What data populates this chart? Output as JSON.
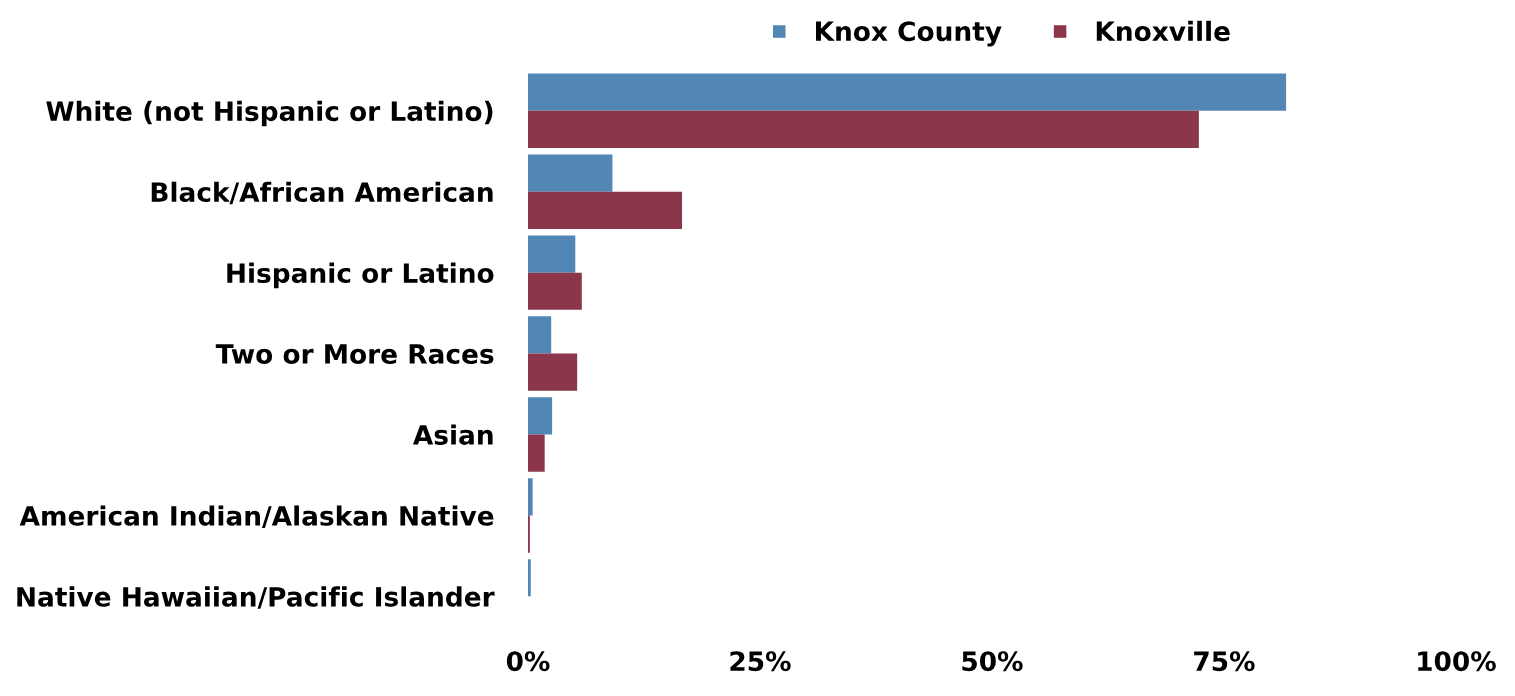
{
  "chart_data": {
    "type": "bar",
    "orientation": "horizontal",
    "categories": [
      "White (not Hispanic or Latino)",
      "Black/African American",
      "Hispanic or Latino",
      "Two or More Races",
      "Asian",
      "American Indian/Alaskan Native",
      "Native Hawaiian/Pacific Islander"
    ],
    "series": [
      {
        "name": "Knox County",
        "color": "#5186b5",
        "values": [
          81.7,
          9.1,
          5.1,
          2.5,
          2.6,
          0.5,
          0.3
        ]
      },
      {
        "name": "Knoxville",
        "color": "#8c364b",
        "values": [
          72.3,
          16.6,
          5.8,
          5.3,
          1.8,
          0.2,
          0
        ]
      }
    ],
    "xlim": [
      0,
      100
    ],
    "xticks": [
      {
        "value": 0,
        "label": "0%"
      },
      {
        "value": 25,
        "label": "25%"
      },
      {
        "value": 50,
        "label": "50%"
      },
      {
        "value": 75,
        "label": "75%"
      },
      {
        "value": 100,
        "label": "100%"
      }
    ],
    "grid": false,
    "legend": "top"
  }
}
